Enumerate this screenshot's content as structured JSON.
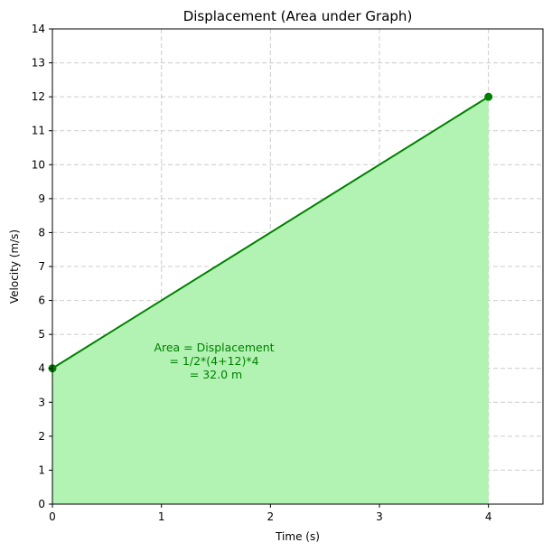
{
  "chart_data": {
    "type": "area",
    "title": "Displacement (Area under Graph)",
    "xlabel": "Time (s)",
    "ylabel": "Velocity (m/s)",
    "xlim": [
      0,
      4.5
    ],
    "ylim": [
      0,
      14
    ],
    "x_ticks": [
      0,
      1,
      2,
      3,
      4
    ],
    "y_ticks": [
      0,
      1,
      2,
      3,
      4,
      5,
      6,
      7,
      8,
      9,
      10,
      11,
      12,
      13,
      14
    ],
    "grid": true,
    "series": [
      {
        "x": [
          0,
          4
        ],
        "y": [
          4,
          12
        ],
        "markers": true,
        "fill_to_zero": true
      }
    ],
    "annotation": {
      "lines": [
        "Area = Displacement",
        "= 1/2*(4+12)*4",
        "= 32.0 m"
      ],
      "x": 1.5,
      "y": 4.2
    },
    "colors": {
      "line": "#008000",
      "fill": "#b2f2b2",
      "annotation": "#008000",
      "grid": "#cccccc",
      "axis": "#000000"
    }
  }
}
